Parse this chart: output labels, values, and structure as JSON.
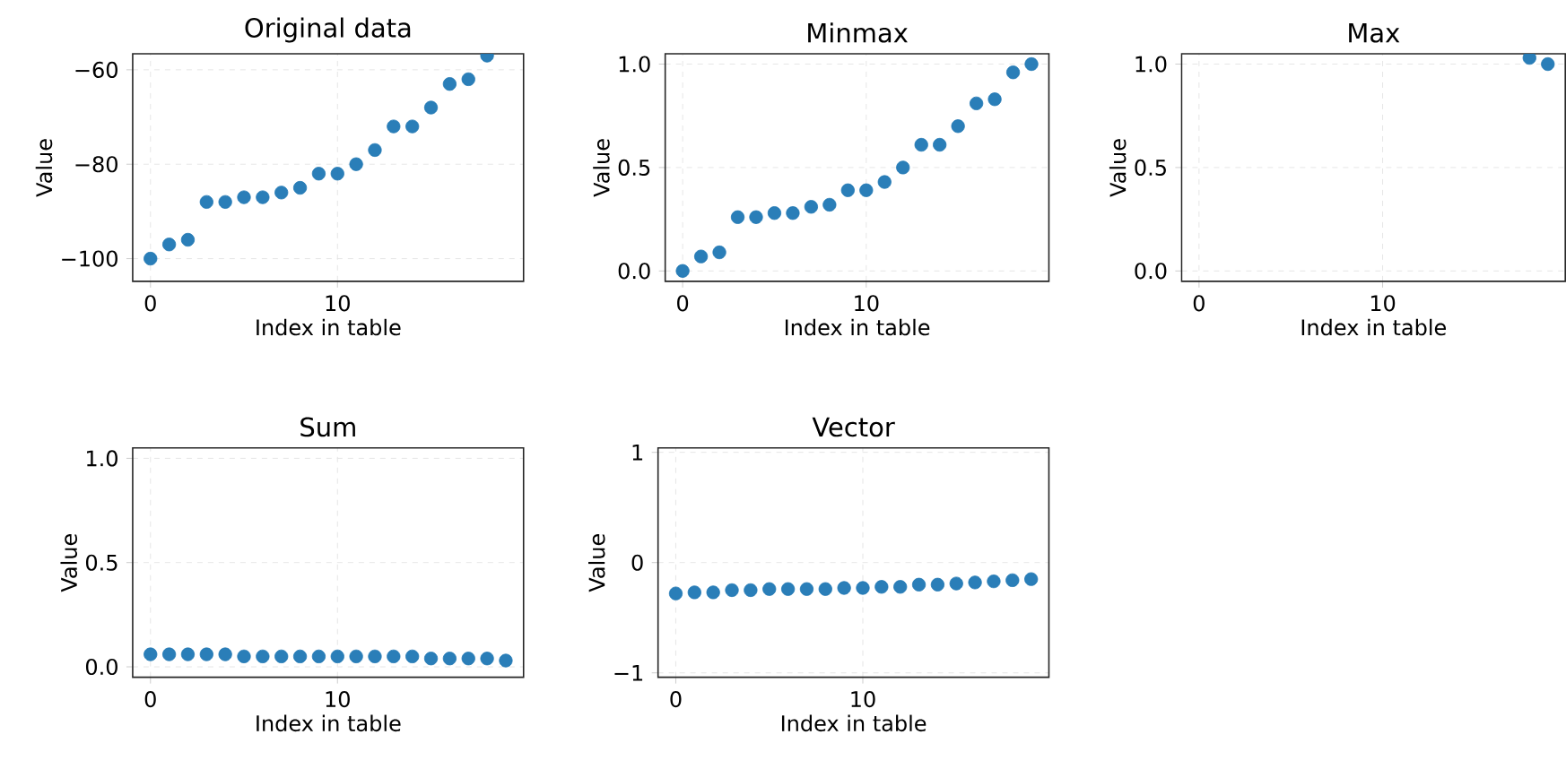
{
  "chart_data": [
    {
      "type": "scatter",
      "title": "Original data",
      "xlabel": "Index in table",
      "ylabel": "Value",
      "color": "#1f77b4",
      "grid": true,
      "x": [
        0,
        1,
        2,
        3,
        4,
        5,
        6,
        7,
        8,
        9,
        10,
        11,
        12,
        13,
        14,
        15,
        16,
        17,
        18
      ],
      "values": [
        -100,
        -97,
        -96,
        -88,
        -88,
        -87,
        -87,
        -86,
        -85,
        -82,
        -82,
        -80,
        -77,
        -72,
        -72,
        -68,
        -63,
        -62,
        -57
      ],
      "xlim": [
        -0.95,
        19.95
      ],
      "xticks": [
        0,
        10
      ],
      "ylim": [
        -104.8,
        -56.6
      ],
      "yticks": [
        {
          "value": -100,
          "label": "−100"
        },
        {
          "value": -80,
          "label": "−80"
        },
        {
          "value": -60,
          "label": "−60"
        }
      ]
    },
    {
      "type": "scatter",
      "title": "Minmax",
      "xlabel": "Index in table",
      "ylabel": "Value",
      "color": "#1f77b4",
      "grid": true,
      "x": [
        0,
        1,
        2,
        3,
        4,
        5,
        6,
        7,
        8,
        9,
        10,
        11,
        12,
        13,
        14,
        15,
        16,
        17,
        18,
        19
      ],
      "values": [
        0,
        0.07,
        0.09,
        0.26,
        0.26,
        0.28,
        0.28,
        0.31,
        0.32,
        0.39,
        0.39,
        0.43,
        0.5,
        0.61,
        0.61,
        0.7,
        0.81,
        0.83,
        0.96,
        1.0
      ],
      "xlim": [
        -0.95,
        19.95
      ],
      "xticks": [
        0,
        10
      ],
      "ylim": [
        -0.05,
        1.05
      ],
      "yticks": [
        {
          "value": 0,
          "label": "0.0"
        },
        {
          "value": 0.5,
          "label": "0.5"
        },
        {
          "value": 1,
          "label": "1.0"
        }
      ]
    },
    {
      "type": "scatter",
      "title": "Max",
      "xlabel": "Index in table",
      "ylabel": "Value",
      "color": "#1f77b4",
      "grid": true,
      "x": [
        18,
        19
      ],
      "values": [
        1.03,
        1.0
      ],
      "xlim": [
        -0.95,
        19.95
      ],
      "xticks": [
        0,
        10
      ],
      "ylim": [
        -0.05,
        1.05
      ],
      "yticks": [
        {
          "value": 0,
          "label": "0.0"
        },
        {
          "value": 0.5,
          "label": "0.5"
        },
        {
          "value": 1,
          "label": "1.0"
        }
      ]
    },
    {
      "type": "scatter",
      "title": "Sum",
      "xlabel": "Index in table",
      "ylabel": "Value",
      "color": "#1f77b4",
      "grid": true,
      "x": [
        0,
        1,
        2,
        3,
        4,
        5,
        6,
        7,
        8,
        9,
        10,
        11,
        12,
        13,
        14,
        15,
        16,
        17,
        18,
        19
      ],
      "values": [
        0.06,
        0.06,
        0.06,
        0.06,
        0.06,
        0.05,
        0.05,
        0.05,
        0.05,
        0.05,
        0.05,
        0.05,
        0.05,
        0.05,
        0.05,
        0.04,
        0.04,
        0.04,
        0.04,
        0.03
      ],
      "xlim": [
        -0.95,
        19.95
      ],
      "xticks": [
        0,
        10
      ],
      "ylim": [
        -0.05,
        1.05
      ],
      "yticks": [
        {
          "value": 0,
          "label": "0.0"
        },
        {
          "value": 0.5,
          "label": "0.5"
        },
        {
          "value": 1,
          "label": "1.0"
        }
      ]
    },
    {
      "type": "scatter",
      "title": "Vector",
      "xlabel": "Index in table",
      "ylabel": "Value",
      "color": "#1f77b4",
      "grid": true,
      "x": [
        0,
        1,
        2,
        3,
        4,
        5,
        6,
        7,
        8,
        9,
        10,
        11,
        12,
        13,
        14,
        15,
        16,
        17,
        18,
        19
      ],
      "values": [
        -0.28,
        -0.27,
        -0.27,
        -0.25,
        -0.25,
        -0.24,
        -0.24,
        -0.24,
        -0.24,
        -0.23,
        -0.23,
        -0.22,
        -0.22,
        -0.2,
        -0.2,
        -0.19,
        -0.18,
        -0.17,
        -0.16,
        -0.15
      ],
      "xlim": [
        -0.95,
        19.95
      ],
      "xticks": [
        0,
        10
      ],
      "ylim": [
        -1.04,
        1.04
      ],
      "yticks": [
        {
          "value": -1,
          "label": "−1"
        },
        0,
        1
      ]
    }
  ]
}
